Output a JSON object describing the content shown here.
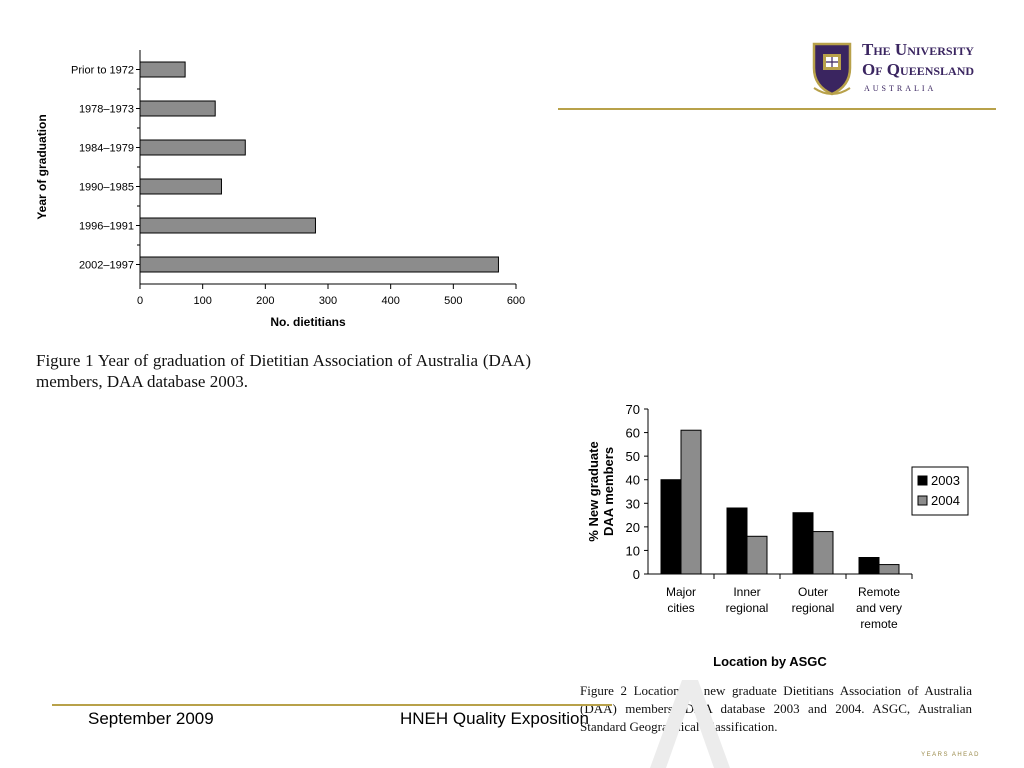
{
  "logo": {
    "line1": "The University",
    "line2": "Of Queensland",
    "line3": "AUSTRALIA"
  },
  "footer": {
    "date": "September 2009",
    "event": "HNEH Quality Exposition"
  },
  "tagline": "YEARS AHEAD",
  "colors": {
    "gold_rule": "#b8a14a",
    "logo_purple": "#3a2560",
    "bar_gray": "#8c8c8c"
  },
  "chart_data": [
    {
      "type": "bar",
      "orientation": "horizontal",
      "categories": [
        "Prior to 1972",
        "1978–1973",
        "1984–1979",
        "1990–1985",
        "1996–1991",
        "2002–1997"
      ],
      "values": [
        72,
        120,
        168,
        130,
        280,
        572
      ],
      "xlabel": "No. dietitians",
      "ylabel": "Year of graduation",
      "xlim": [
        0,
        600
      ],
      "xticks": [
        0,
        100,
        200,
        300,
        400,
        500,
        600
      ],
      "grid": false,
      "caption": "Figure 1  Year of graduation of Dietitian Association of Australia (DAA) members, DAA database 2003."
    },
    {
      "type": "bar",
      "categories": [
        "Major cities",
        "Inner regional",
        "Outer regional",
        "Remote and very remote"
      ],
      "series": [
        {
          "name": "2003",
          "color": "#000000",
          "values": [
            40,
            28,
            26,
            7
          ]
        },
        {
          "name": "2004",
          "color": "#8c8c8c",
          "values": [
            61,
            16,
            18,
            4
          ]
        }
      ],
      "xlabel": "Location by ASGC",
      "ylabel": "% New graduate DAA members",
      "ylim": [
        0,
        70
      ],
      "yticks": [
        0,
        10,
        20,
        30,
        40,
        50,
        60,
        70
      ],
      "legend": "right",
      "grid": false,
      "caption": "Figure 2  Location of new graduate Dietitians Association of Australia (DAA) members, DAA database 2003 and 2004. ASGC, Australian Standard Geographical Classification."
    }
  ]
}
